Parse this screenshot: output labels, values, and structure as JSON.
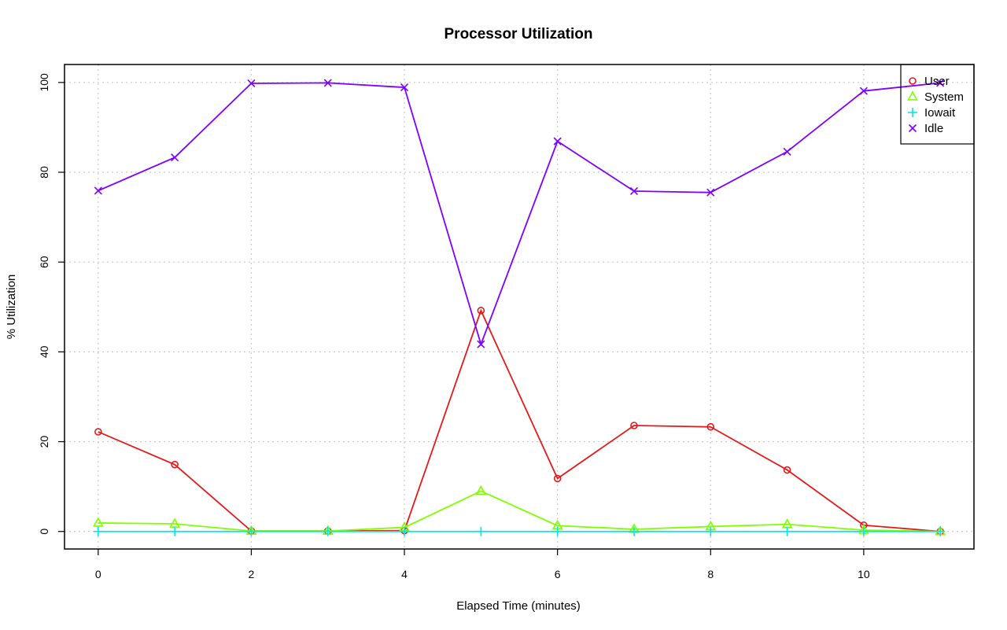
{
  "chart_data": {
    "type": "line",
    "title": "Processor Utilization",
    "xlabel": "Elapsed Time (minutes)",
    "ylabel": "% Utilization",
    "xlim": [
      -0.44,
      11.44
    ],
    "ylim": [
      -3.9,
      104
    ],
    "xticks": [
      0,
      2,
      4,
      6,
      8,
      10
    ],
    "yticks": [
      0,
      20,
      40,
      60,
      80,
      100
    ],
    "grid": true,
    "legend_position": "top-right",
    "x": [
      0,
      1,
      2,
      3,
      4,
      5,
      6,
      7,
      8,
      9,
      10,
      11
    ],
    "series": [
      {
        "name": "User",
        "color": "#e41a1a",
        "marker": "circle",
        "values": [
          22.2,
          14.9,
          0.1,
          0.1,
          0.2,
          49.2,
          11.8,
          23.6,
          23.3,
          13.7,
          1.4,
          0.0
        ]
      },
      {
        "name": "System",
        "color": "#7fff00",
        "marker": "triangle",
        "values": [
          1.9,
          1.7,
          0.1,
          0.1,
          0.9,
          9.0,
          1.3,
          0.5,
          1.1,
          1.6,
          0.3,
          0.0
        ]
      },
      {
        "name": "Iowait",
        "color": "#00e5ee",
        "marker": "plus",
        "values": [
          0,
          0,
          0,
          0,
          0,
          0,
          0,
          0,
          0,
          0,
          0,
          0
        ]
      },
      {
        "name": "Idle",
        "color": "#7f00ff",
        "marker": "cross",
        "values": [
          75.9,
          83.3,
          99.8,
          99.9,
          98.9,
          41.7,
          86.9,
          75.8,
          75.5,
          84.6,
          98.1,
          99.9
        ]
      }
    ]
  }
}
